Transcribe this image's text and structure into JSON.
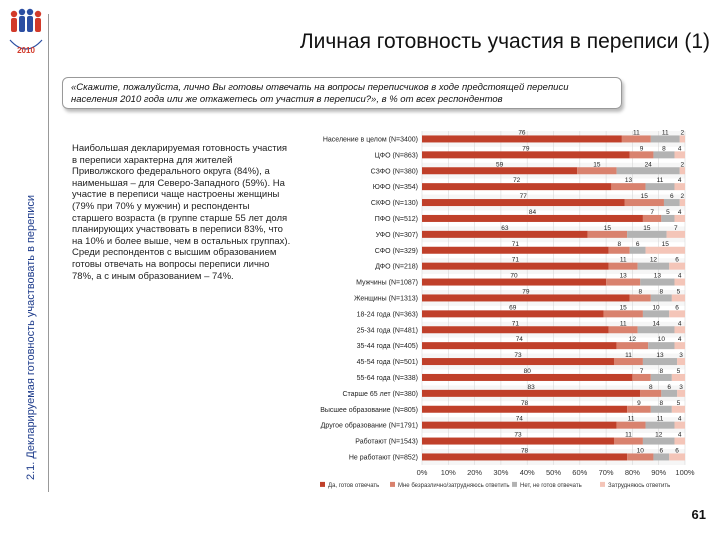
{
  "side_label": "2.1. Декларируемая готовность участвовать в переписи",
  "title": "Личная готовность участия в переписи (1)",
  "question": "«Скажите, пожалуйста, лично Вы готовы отвечать на вопросы переписчиков в ходе предстоящей переписи населения 2010 года или же откажетесь от участия в переписи?», в % от всех респондентов",
  "body_text": "Наибольшая декларируемая готовность участия в переписи характерна для жителей Приволжского федерального округа (84%), а наименьшая – для Северо-Западного (59%). На участие в переписи чаще настроены женщины (79% при 70% у мужчин) и респонденты старшего возраста (в группе старше 55 лет доля планирующих участвовать в переписи 83%, что на 10% и более выше, чем в остальных группах). Среди респондентов с высшим образованием готовы отвечать на вопросы переписи лично 78%, а с иным образованием – 74%.",
  "page_number": "61",
  "logo": {
    "year": "2010"
  },
  "colors": {
    "series": [
      "#c0402a",
      "#d9826e",
      "#b3b3b3",
      "#f4c5b8"
    ],
    "logo_blue": "#2b4ea2",
    "logo_red": "#d23a2a",
    "side_label": "#1f3d8c"
  },
  "chart_data": {
    "type": "bar",
    "orientation": "horizontal",
    "stacked": true,
    "categories": [
      "Население в целом (N=3400)",
      "ЦФО (N=863)",
      "СЗФО (N=380)",
      "ЮФО (N=354)",
      "СКФО (N=130)",
      "ПФО (N=512)",
      "УФО (N=307)",
      "СФО (N=329)",
      "ДФО (N=218)",
      "Мужчины (N=1087)",
      "Женщины (N=1313)",
      "18-24 года (N=363)",
      "25-34 года (N=481)",
      "35-44 года (N=405)",
      "45-54 года (N=501)",
      "55-64 года (N=338)",
      "Старше 65 лет (N=380)",
      "Высшее образование (N=805)",
      "Другое образование (N=1791)",
      "Работают (N=1543)",
      "Не работают (N=852)"
    ],
    "series": [
      {
        "name": "Да, готов отвечать",
        "values": [
          76,
          79,
          59,
          72,
          77,
          84,
          63,
          71,
          71,
          70,
          79,
          69,
          71,
          74,
          73,
          80,
          83,
          78,
          74,
          73,
          78
        ]
      },
      {
        "name": "Мне безразлично/затрудняюсь ответить",
        "values": [
          11,
          9,
          15,
          13,
          15,
          7,
          15,
          8,
          11,
          13,
          8,
          15,
          11,
          12,
          11,
          7,
          8,
          9,
          11,
          11,
          10
        ]
      },
      {
        "name": "Нет, не готов отвечать",
        "values": [
          11,
          8,
          24,
          11,
          6,
          5,
          15,
          6,
          12,
          13,
          8,
          10,
          14,
          10,
          13,
          8,
          6,
          8,
          11,
          12,
          6
        ]
      },
      {
        "name": "Затрудняюсь ответить",
        "values": [
          2,
          4,
          2,
          4,
          2,
          4,
          7,
          15,
          6,
          4,
          5,
          6,
          4,
          4,
          3,
          5,
          3,
          5,
          4,
          4,
          6
        ]
      }
    ],
    "xticks": [
      "0%",
      "10%",
      "20%",
      "30%",
      "40%",
      "50%",
      "60%",
      "70%",
      "80%",
      "90%",
      "100%"
    ],
    "xlim": [
      0,
      100
    ],
    "legend_position": "bottom"
  }
}
